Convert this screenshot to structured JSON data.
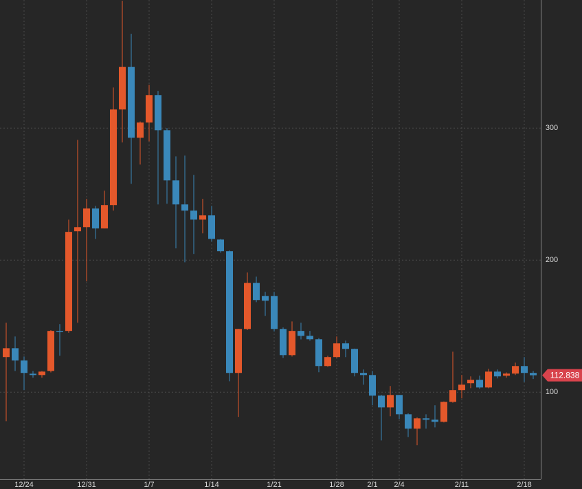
{
  "chart_data": {
    "type": "candlestick",
    "categories": [
      null,
      null,
      "12/24",
      null,
      null,
      null,
      null,
      null,
      null,
      "12/31",
      null,
      null,
      null,
      null,
      null,
      null,
      "1/7",
      null,
      null,
      null,
      null,
      null,
      null,
      "1/14",
      null,
      null,
      null,
      null,
      null,
      null,
      "1/21",
      null,
      null,
      null,
      null,
      null,
      null,
      "1/28",
      null,
      null,
      null,
      "2/1",
      null,
      null,
      "2/4",
      null,
      null,
      null,
      null,
      null,
      null,
      "2/11",
      null,
      null,
      null,
      null,
      null,
      null,
      "2/18",
      null
    ],
    "open": [
      126.6,
      133.3,
      124.0,
      114.0,
      113.0,
      116.1,
      146.4,
      146.4,
      221.9,
      225.0,
      239.1,
      224.0,
      241.7,
      314.1,
      346.4,
      292.7,
      304.2,
      325.0,
      298.4,
      260.4,
      242.2,
      237.5,
      230.7,
      233.9,
      215.6,
      206.8,
      114.6,
      147.9,
      182.8,
      172.9,
      172.9,
      147.9,
      128.1,
      146.4,
      142.7,
      140.1,
      119.8,
      126.6,
      137.0,
      132.8,
      114.6,
      113.0,
      97.4,
      88.5,
      97.9,
      83.3,
      72.4,
      80.2,
      79.2,
      77.6,
      92.7,
      101.6,
      106.8,
      109.4,
      103.6,
      115.6,
      112.5,
      114.1,
      119.8,
      114.6
    ],
    "high": [
      152.6,
      142.2,
      127.0,
      116.0,
      116.0,
      147.0,
      151.6,
      230.7,
      291.1,
      246.4,
      241.1,
      252.6,
      330.7,
      396.4,
      371.4,
      305.0,
      332.8,
      328.1,
      300.0,
      278.6,
      279.2,
      264.6,
      246.4,
      241.1,
      216.0,
      207.3,
      148.0,
      190.6,
      187.5,
      176.0,
      176.0,
      149.0,
      153.6,
      152.6,
      146.4,
      141.0,
      127.6,
      142.2,
      139.1,
      133.0,
      117.2,
      116.1,
      98.0,
      104.7,
      98.0,
      84.0,
      81.0,
      83.3,
      90.1,
      93.0,
      130.7,
      113.0,
      112.0,
      112.5,
      117.7,
      117.2,
      115.0,
      122.4,
      126.6,
      116.1
    ],
    "low": [
      78.1,
      116.1,
      101.6,
      111.0,
      111.0,
      115.0,
      127.6,
      145.0,
      152.6,
      183.9,
      216.1,
      224.0,
      237.5,
      289.1,
      257.8,
      272.4,
      290.0,
      242.2,
      242.7,
      208.9,
      198.4,
      204.7,
      220.3,
      214.1,
      205.7,
      108.3,
      81.3,
      147.0,
      168.2,
      157.8,
      146.0,
      126.0,
      127.0,
      140.0,
      139.0,
      115.1,
      119.3,
      126.0,
      126.6,
      112.0,
      105.7,
      90.1,
      63.5,
      81.8,
      79.7,
      66.1,
      59.9,
      72.4,
      73.4,
      77.1,
      92.0,
      95.3,
      103.1,
      102.6,
      103.0,
      110.4,
      111.0,
      113.0,
      107.8,
      110.0
    ],
    "close": [
      133.3,
      124.0,
      114.6,
      113.0,
      115.6,
      146.4,
      145.9,
      221.4,
      225.0,
      239.1,
      224.0,
      241.7,
      314.1,
      346.4,
      292.7,
      304.2,
      325.0,
      298.4,
      260.4,
      242.2,
      237.5,
      230.7,
      233.9,
      216.1,
      206.8,
      114.6,
      147.9,
      182.8,
      169.8,
      169.3,
      147.9,
      128.1,
      146.4,
      142.7,
      140.1,
      119.8,
      126.6,
      137.0,
      132.8,
      114.6,
      113.0,
      97.4,
      88.5,
      97.9,
      83.3,
      72.4,
      80.2,
      79.2,
      77.6,
      92.7,
      101.6,
      105.7,
      109.4,
      103.6,
      115.6,
      112.0,
      114.1,
      119.8,
      114.6,
      112.838
    ],
    "up_color": "#e4582b",
    "down_color": "#3a88ba",
    "ylim": [
      34,
      397
    ],
    "yticks": [
      100,
      200,
      300
    ],
    "grid": true,
    "last_price": 112.838,
    "last_price_color": "#d8434c"
  }
}
